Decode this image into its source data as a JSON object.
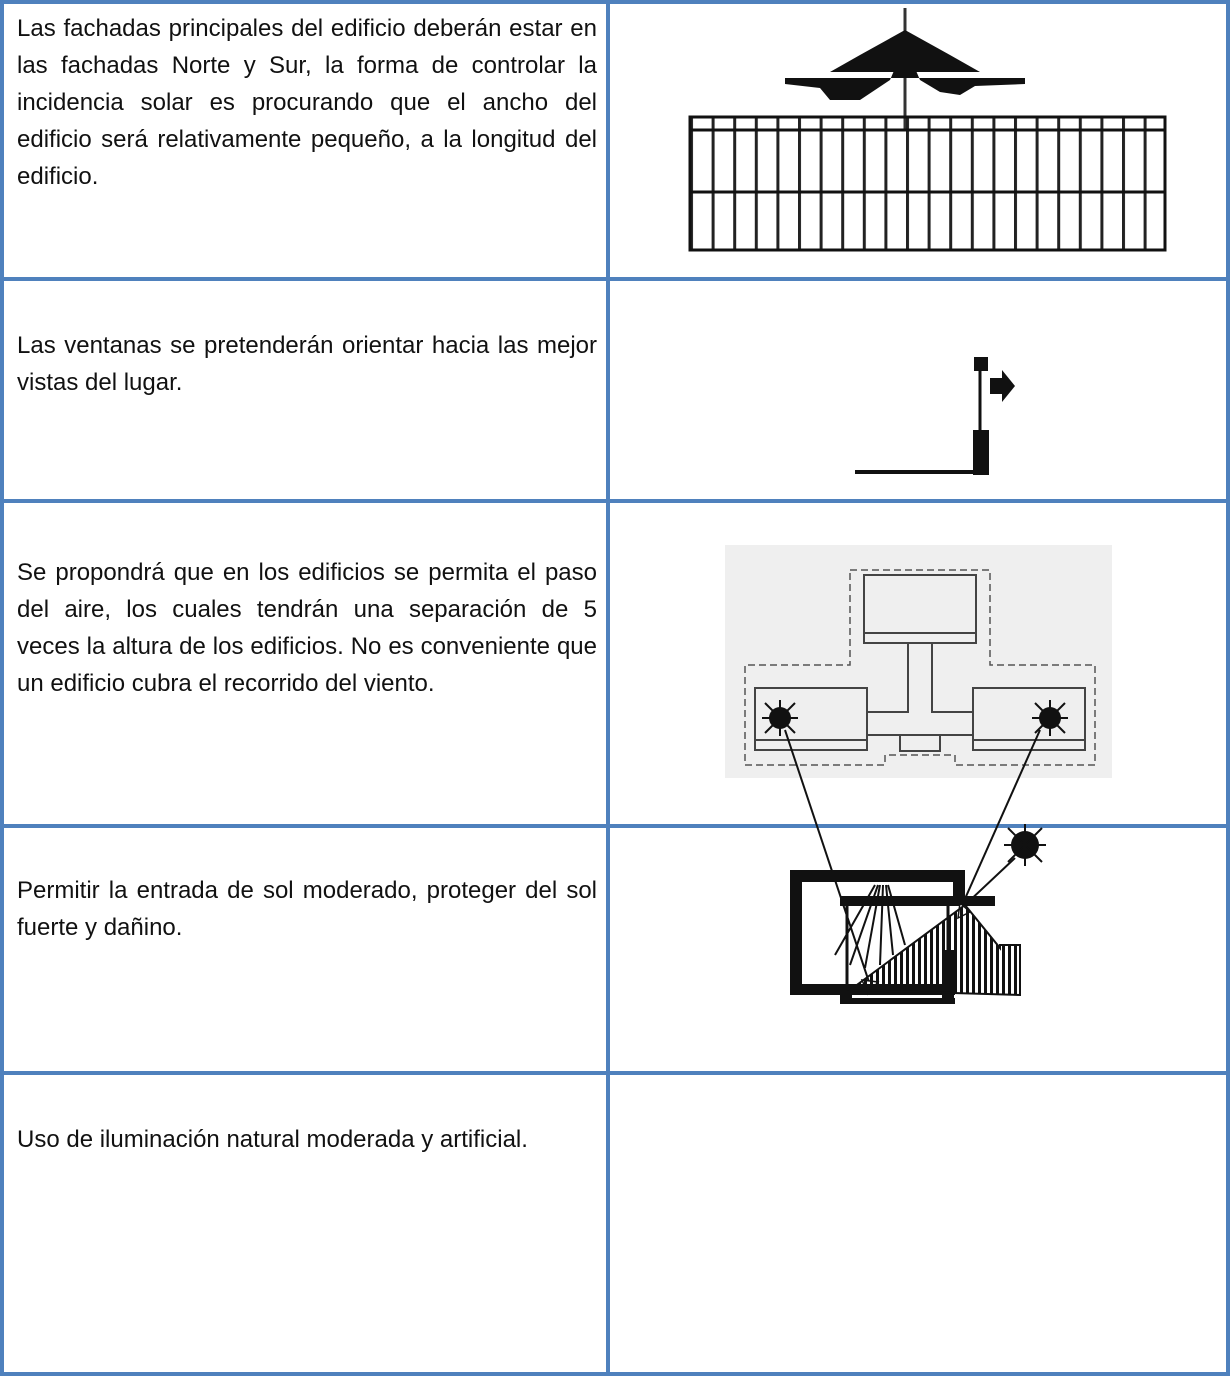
{
  "table": {
    "rows": [
      {
        "text": "Las fachadas principales del edificio deberán estar en las fachadas Norte y Sur, la forma de controlar la incidencia solar es procurando que el ancho del edificio será relativamente pequeño, a la longitud del edificio."
      },
      {
        "text": "Las ventanas se pretenderán orientar hacia las mejor vistas del lugar."
      },
      {
        "text": "Se propondrá que en los edificios se permita el paso del aire, los cuales tendrán una separación de 5 veces la altura de los edificios. No es conveniente que un edificio cubra el recorrido del viento."
      },
      {
        "text": "Permitir la entrada de sol moderado, proteger del sol fuerte y dañino."
      },
      {
        "text": "Uso de iluminación natural moderada y artificial."
      }
    ]
  }
}
